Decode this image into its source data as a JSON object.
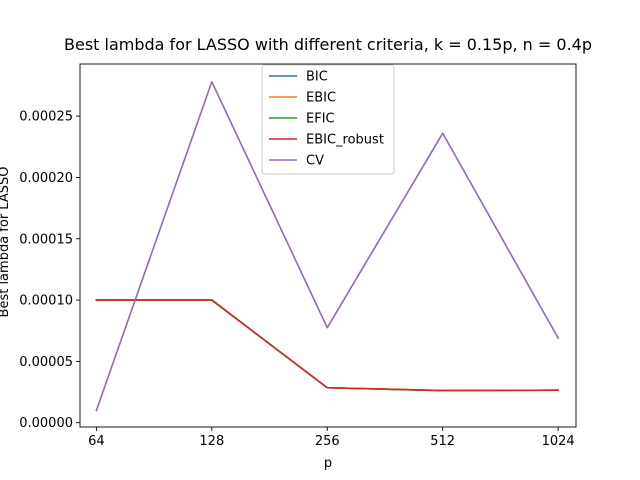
{
  "chart_data": {
    "type": "line",
    "title": "Best lambda for LASSO with different criteria, k = 0.15p, n = 0.4p",
    "xlabel": "p",
    "ylabel": "Best lambda for LASSO",
    "x": [
      64,
      128,
      256,
      512,
      1024
    ],
    "x_scale": "log2",
    "xlim": [
      58,
      1140
    ],
    "ylim": [
      -3.5e-06,
      0.0002925
    ],
    "yticks": [
      0.0,
      5e-05,
      0.0001,
      0.00015,
      0.0002,
      0.00025
    ],
    "ytick_labels": [
      "0.00000",
      "0.00005",
      "0.00010",
      "0.00015",
      "0.00020",
      "0.00025"
    ],
    "xtick_labels": [
      "64",
      "128",
      "256",
      "512",
      "1024"
    ],
    "legend_position": "upper center",
    "grid": false,
    "series": [
      {
        "name": "BIC",
        "color": "#1f77b4",
        "values": [
          0.0001,
          0.0001,
          2.85e-05,
          2.62e-05,
          2.65e-05
        ]
      },
      {
        "name": "EBIC",
        "color": "#ff7f0e",
        "values": [
          0.0001,
          0.0001,
          2.85e-05,
          2.62e-05,
          2.65e-05
        ]
      },
      {
        "name": "EFIC",
        "color": "#2ca02c",
        "values": [
          0.0001,
          0.0001,
          2.85e-05,
          2.62e-05,
          2.65e-05
        ]
      },
      {
        "name": "EBIC_robust",
        "color": "#d62728",
        "values": [
          0.0001,
          0.0001,
          2.85e-05,
          2.62e-05,
          2.65e-05
        ]
      },
      {
        "name": "CV",
        "color": "#9467bd",
        "values": [
          1e-05,
          0.000278,
          7.75e-05,
          0.000236,
          6.9e-05
        ]
      }
    ]
  }
}
